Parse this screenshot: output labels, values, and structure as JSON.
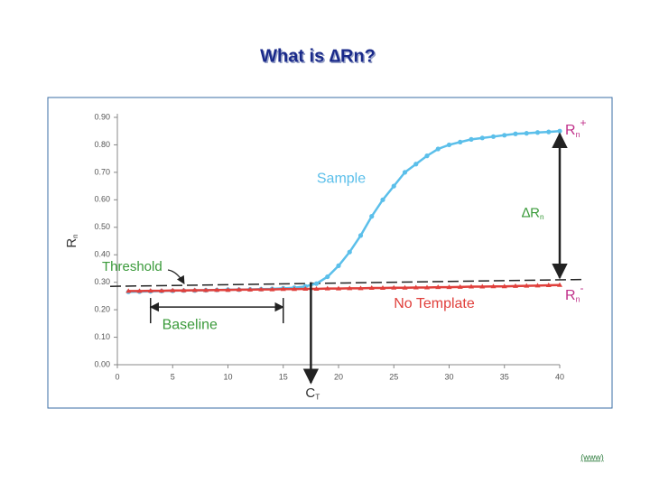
{
  "chart_data": {
    "type": "line",
    "title": "What is ∆Rn?",
    "y_label": "R",
    "y_label_sub": "n",
    "xlim": [
      0,
      42
    ],
    "xticks": [
      0,
      5,
      10,
      15,
      20,
      25,
      30,
      35,
      40
    ],
    "ylim": [
      0,
      0.9
    ],
    "yticks": [
      {
        "value": 0,
        "label": "0.00"
      },
      {
        "value": 0.1,
        "label": "0.10"
      },
      {
        "value": 0.2,
        "label": "0.20"
      },
      {
        "value": 0.3,
        "label": "0.30"
      },
      {
        "value": 0.4,
        "label": "0.40"
      },
      {
        "value": 0.5,
        "label": "0.50"
      },
      {
        "value": 0.6,
        "label": "0.60"
      },
      {
        "value": 0.7,
        "label": "0.70"
      },
      {
        "value": 0.8,
        "label": "0.80"
      },
      {
        "value": 0.9,
        "label": "0.90"
      }
    ],
    "x": [
      1,
      2,
      3,
      4,
      5,
      6,
      7,
      8,
      9,
      10,
      11,
      12,
      13,
      14,
      15,
      16,
      17,
      18,
      19,
      20,
      21,
      22,
      23,
      24,
      25,
      26,
      27,
      28,
      29,
      30,
      31,
      32,
      33,
      34,
      35,
      36,
      37,
      38,
      39,
      40
    ],
    "series": [
      {
        "name": "Sample",
        "color": "#5bbfea",
        "values": [
          0.265,
          0.266,
          0.267,
          0.268,
          0.269,
          0.27,
          0.27,
          0.271,
          0.272,
          0.273,
          0.273,
          0.274,
          0.275,
          0.276,
          0.278,
          0.28,
          0.285,
          0.295,
          0.32,
          0.36,
          0.41,
          0.47,
          0.54,
          0.6,
          0.65,
          0.7,
          0.73,
          0.76,
          0.785,
          0.8,
          0.81,
          0.82,
          0.825,
          0.83,
          0.835,
          0.84,
          0.842,
          0.845,
          0.847,
          0.85
        ]
      },
      {
        "name": "No Template",
        "color": "#e0403c",
        "values": [
          0.268,
          0.268,
          0.269,
          0.269,
          0.27,
          0.27,
          0.271,
          0.271,
          0.272,
          0.272,
          0.273,
          0.273,
          0.274,
          0.274,
          0.275,
          0.275,
          0.276,
          0.276,
          0.277,
          0.277,
          0.278,
          0.278,
          0.279,
          0.279,
          0.28,
          0.28,
          0.281,
          0.281,
          0.282,
          0.282,
          0.283,
          0.284,
          0.284,
          0.285,
          0.285,
          0.286,
          0.287,
          0.288,
          0.289,
          0.29
        ]
      }
    ],
    "threshold": {
      "label": "Threshold",
      "x": [
        0,
        42
      ],
      "values": [
        0.285,
        0.31
      ]
    },
    "baseline": {
      "label": "Baseline",
      "range": [
        3,
        15
      ],
      "y": 0.21
    },
    "ct": {
      "label": "C",
      "sub": "T",
      "value": 17.5
    },
    "delta": {
      "label": "∆R",
      "sub": "n"
    },
    "rn_plus": {
      "label": "R",
      "sub": "n",
      "sup": "+"
    },
    "rn_minus": {
      "label": "R",
      "sub": "n",
      "sup": "-"
    },
    "footer": "(www)"
  }
}
